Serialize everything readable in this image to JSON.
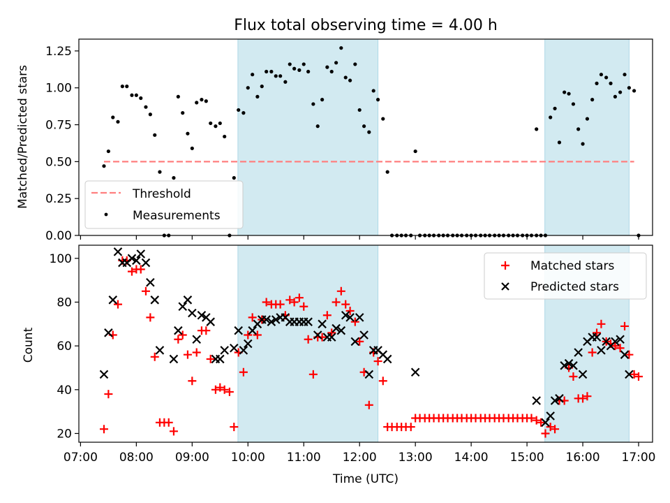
{
  "chart_data": {
    "type": "scatter",
    "title": "Flux total observing time = 4.00 h",
    "xlabel": "Time (UTC)",
    "x_ticks": [
      "07:00",
      "08:00",
      "09:00",
      "10:00",
      "11:00",
      "12:00",
      "13:00",
      "14:00",
      "15:00",
      "16:00",
      "17:00"
    ],
    "x_range_hours": [
      6.97,
      17.25
    ],
    "shaded_intervals_hours": [
      [
        9.82,
        12.33
      ],
      [
        15.32,
        16.83
      ]
    ],
    "colors": {
      "measure": "#000000",
      "threshold": "#ff7f7f",
      "matched": "#ff0000",
      "predicted": "#000000",
      "shade": "#add8e6"
    },
    "top_panel": {
      "ylabel": "Matched/Predicted stars",
      "ylim": [
        0,
        1.33
      ],
      "y_ticks": [
        "0.00",
        "0.25",
        "0.50",
        "0.75",
        "1.00",
        "1.25"
      ],
      "threshold": {
        "value": 0.5,
        "x_range": [
          7.42,
          16.92
        ],
        "label": "Threshold"
      },
      "measurements_label": "Measurements",
      "measurements": [
        [
          7.42,
          0.47
        ],
        [
          7.5,
          0.57
        ],
        [
          7.58,
          0.8
        ],
        [
          7.67,
          0.77
        ],
        [
          7.75,
          1.01
        ],
        [
          7.83,
          1.01
        ],
        [
          7.92,
          0.95
        ],
        [
          8.0,
          0.95
        ],
        [
          8.08,
          0.93
        ],
        [
          8.17,
          0.87
        ],
        [
          8.25,
          0.82
        ],
        [
          8.33,
          0.68
        ],
        [
          8.42,
          0.43
        ],
        [
          8.5,
          0.0
        ],
        [
          8.58,
          0.0
        ],
        [
          8.67,
          0.39
        ],
        [
          8.75,
          0.94
        ],
        [
          8.83,
          0.83
        ],
        [
          8.92,
          0.69
        ],
        [
          9.0,
          0.59
        ],
        [
          9.08,
          0.9
        ],
        [
          9.17,
          0.92
        ],
        [
          9.25,
          0.91
        ],
        [
          9.33,
          0.76
        ],
        [
          9.42,
          0.74
        ],
        [
          9.5,
          0.76
        ],
        [
          9.58,
          0.67
        ],
        [
          9.67,
          0.0
        ],
        [
          9.75,
          0.39
        ],
        [
          9.83,
          0.85
        ],
        [
          9.92,
          0.83
        ],
        [
          10.0,
          1.0
        ],
        [
          10.08,
          1.09
        ],
        [
          10.17,
          0.94
        ],
        [
          10.25,
          1.01
        ],
        [
          10.33,
          1.11
        ],
        [
          10.42,
          1.11
        ],
        [
          10.5,
          1.08
        ],
        [
          10.58,
          1.08
        ],
        [
          10.67,
          1.04
        ],
        [
          10.75,
          1.16
        ],
        [
          10.83,
          1.13
        ],
        [
          10.92,
          1.12
        ],
        [
          11.0,
          1.16
        ],
        [
          11.08,
          1.11
        ],
        [
          11.17,
          0.89
        ],
        [
          11.25,
          0.74
        ],
        [
          11.33,
          0.92
        ],
        [
          11.42,
          1.14
        ],
        [
          11.5,
          1.11
        ],
        [
          11.58,
          1.17
        ],
        [
          11.67,
          1.27
        ],
        [
          11.75,
          1.07
        ],
        [
          11.83,
          1.05
        ],
        [
          11.92,
          1.16
        ],
        [
          12.0,
          0.85
        ],
        [
          12.08,
          0.74
        ],
        [
          12.17,
          0.7
        ],
        [
          12.25,
          0.98
        ],
        [
          12.33,
          0.92
        ],
        [
          12.42,
          0.79
        ],
        [
          12.5,
          0.43
        ],
        [
          12.58,
          0.0
        ],
        [
          12.67,
          0.0
        ],
        [
          12.75,
          0.0
        ],
        [
          12.83,
          0.0
        ],
        [
          12.92,
          0.0
        ],
        [
          13.0,
          0.57
        ],
        [
          13.08,
          0.0
        ],
        [
          13.17,
          0.0
        ],
        [
          13.25,
          0.0
        ],
        [
          13.33,
          0.0
        ],
        [
          13.42,
          0.0
        ],
        [
          13.5,
          0.0
        ],
        [
          13.58,
          0.0
        ],
        [
          13.67,
          0.0
        ],
        [
          13.75,
          0.0
        ],
        [
          13.83,
          0.0
        ],
        [
          13.92,
          0.0
        ],
        [
          14.0,
          0.0
        ],
        [
          14.08,
          0.0
        ],
        [
          14.17,
          0.0
        ],
        [
          14.25,
          0.0
        ],
        [
          14.33,
          0.0
        ],
        [
          14.42,
          0.0
        ],
        [
          14.5,
          0.0
        ],
        [
          14.58,
          0.0
        ],
        [
          14.67,
          0.0
        ],
        [
          14.75,
          0.0
        ],
        [
          14.83,
          0.0
        ],
        [
          14.92,
          0.0
        ],
        [
          15.0,
          0.0
        ],
        [
          15.08,
          0.0
        ],
        [
          15.17,
          0.0
        ],
        [
          15.25,
          0.0
        ],
        [
          15.33,
          0.0
        ],
        [
          15.17,
          0.72
        ],
        [
          15.42,
          0.8
        ],
        [
          15.5,
          0.86
        ],
        [
          15.58,
          0.63
        ],
        [
          15.67,
          0.97
        ],
        [
          15.75,
          0.96
        ],
        [
          15.83,
          0.89
        ],
        [
          15.92,
          0.72
        ],
        [
          16.0,
          0.62
        ],
        [
          16.08,
          0.79
        ],
        [
          16.17,
          0.92
        ],
        [
          16.25,
          1.03
        ],
        [
          16.33,
          1.09
        ],
        [
          16.42,
          1.07
        ],
        [
          16.5,
          1.03
        ],
        [
          16.58,
          0.94
        ],
        [
          16.67,
          0.97
        ],
        [
          16.75,
          1.09
        ],
        [
          16.83,
          1.0
        ],
        [
          16.92,
          0.98
        ],
        [
          17.0,
          0.0
        ]
      ]
    },
    "bottom_panel": {
      "ylabel": "Count",
      "ylim": [
        16,
        106
      ],
      "y_ticks": [
        "20",
        "40",
        "60",
        "80",
        "100"
      ],
      "matched_label": "Matched stars",
      "predicted_label": "Predicted stars",
      "matched": [
        [
          7.42,
          22
        ],
        [
          7.5,
          38
        ],
        [
          7.58,
          65
        ],
        [
          7.67,
          79
        ],
        [
          7.75,
          99
        ],
        [
          7.83,
          99
        ],
        [
          7.92,
          94
        ],
        [
          8.0,
          95
        ],
        [
          8.08,
          95
        ],
        [
          8.17,
          85
        ],
        [
          8.25,
          73
        ],
        [
          8.33,
          55
        ],
        [
          8.42,
          25
        ],
        [
          8.5,
          25
        ],
        [
          8.58,
          25
        ],
        [
          8.67,
          21
        ],
        [
          8.75,
          63
        ],
        [
          8.83,
          65
        ],
        [
          8.92,
          56
        ],
        [
          9.0,
          44
        ],
        [
          9.08,
          57
        ],
        [
          9.17,
          67
        ],
        [
          9.25,
          67
        ],
        [
          9.33,
          54
        ],
        [
          9.42,
          40
        ],
        [
          9.5,
          41
        ],
        [
          9.58,
          40
        ],
        [
          9.67,
          39
        ],
        [
          9.75,
          23
        ],
        [
          9.83,
          57
        ],
        [
          9.92,
          48
        ],
        [
          10.0,
          65
        ],
        [
          10.08,
          73
        ],
        [
          10.17,
          65
        ],
        [
          10.25,
          72
        ],
        [
          10.33,
          80
        ],
        [
          10.42,
          79
        ],
        [
          10.5,
          79
        ],
        [
          10.58,
          79
        ],
        [
          10.67,
          74
        ],
        [
          10.75,
          81
        ],
        [
          10.83,
          80
        ],
        [
          10.92,
          82
        ],
        [
          11.0,
          78
        ],
        [
          11.08,
          63
        ],
        [
          11.17,
          47
        ],
        [
          11.25,
          64
        ],
        [
          11.33,
          64
        ],
        [
          11.42,
          74
        ],
        [
          11.5,
          66
        ],
        [
          11.58,
          80
        ],
        [
          11.67,
          85
        ],
        [
          11.75,
          79
        ],
        [
          11.83,
          76
        ],
        [
          11.92,
          71
        ],
        [
          12.0,
          62
        ],
        [
          12.08,
          48
        ],
        [
          12.17,
          33
        ],
        [
          12.25,
          57
        ],
        [
          12.33,
          53
        ],
        [
          12.42,
          44
        ],
        [
          12.5,
          23
        ],
        [
          12.58,
          23
        ],
        [
          12.67,
          23
        ],
        [
          12.75,
          23
        ],
        [
          12.83,
          23
        ],
        [
          12.92,
          23
        ],
        [
          13.0,
          27
        ],
        [
          13.08,
          27
        ],
        [
          13.17,
          27
        ],
        [
          13.25,
          27
        ],
        [
          13.33,
          27
        ],
        [
          13.42,
          27
        ],
        [
          13.5,
          27
        ],
        [
          13.58,
          27
        ],
        [
          13.67,
          27
        ],
        [
          13.75,
          27
        ],
        [
          13.83,
          27
        ],
        [
          13.92,
          27
        ],
        [
          14.0,
          27
        ],
        [
          14.08,
          27
        ],
        [
          14.17,
          27
        ],
        [
          14.25,
          27
        ],
        [
          14.33,
          27
        ],
        [
          14.42,
          27
        ],
        [
          14.5,
          27
        ],
        [
          14.58,
          27
        ],
        [
          14.67,
          27
        ],
        [
          14.75,
          27
        ],
        [
          14.83,
          27
        ],
        [
          14.92,
          27
        ],
        [
          15.0,
          27
        ],
        [
          15.08,
          27
        ],
        [
          15.17,
          26
        ],
        [
          15.25,
          25
        ],
        [
          15.33,
          20
        ],
        [
          15.42,
          23
        ],
        [
          15.5,
          22
        ],
        [
          15.58,
          35
        ],
        [
          15.67,
          35
        ],
        [
          15.75,
          50
        ],
        [
          15.83,
          46
        ],
        [
          15.92,
          36
        ],
        [
          16.0,
          36
        ],
        [
          16.08,
          37
        ],
        [
          16.17,
          57
        ],
        [
          16.25,
          66
        ],
        [
          16.33,
          70
        ],
        [
          16.42,
          62
        ],
        [
          16.5,
          61
        ],
        [
          16.58,
          60
        ],
        [
          16.67,
          59
        ],
        [
          16.75,
          69
        ],
        [
          16.83,
          56
        ],
        [
          16.92,
          47
        ],
        [
          17.0,
          46
        ]
      ],
      "predicted": [
        [
          7.42,
          47
        ],
        [
          7.5,
          66
        ],
        [
          7.58,
          81
        ],
        [
          7.67,
          103
        ],
        [
          7.75,
          98
        ],
        [
          7.83,
          98
        ],
        [
          7.92,
          100
        ],
        [
          8.0,
          99
        ],
        [
          8.08,
          102
        ],
        [
          8.17,
          98
        ],
        [
          8.25,
          89
        ],
        [
          8.33,
          81
        ],
        [
          8.42,
          58
        ],
        [
          8.67,
          54
        ],
        [
          8.75,
          67
        ],
        [
          8.83,
          78
        ],
        [
          8.92,
          81
        ],
        [
          9.0,
          75
        ],
        [
          9.08,
          63
        ],
        [
          9.17,
          74
        ],
        [
          9.25,
          73
        ],
        [
          9.33,
          71
        ],
        [
          9.42,
          54
        ],
        [
          9.5,
          54
        ],
        [
          9.58,
          58
        ],
        [
          9.75,
          59
        ],
        [
          9.83,
          67
        ],
        [
          9.92,
          58
        ],
        [
          10.0,
          61
        ],
        [
          10.08,
          67
        ],
        [
          10.17,
          70
        ],
        [
          10.25,
          72
        ],
        [
          10.33,
          72
        ],
        [
          10.42,
          71
        ],
        [
          10.5,
          72
        ],
        [
          10.58,
          73
        ],
        [
          10.67,
          73
        ],
        [
          10.75,
          71
        ],
        [
          10.83,
          71
        ],
        [
          10.92,
          71
        ],
        [
          11.0,
          71
        ],
        [
          11.08,
          71
        ],
        [
          11.25,
          65
        ],
        [
          11.33,
          70
        ],
        [
          11.42,
          64
        ],
        [
          11.5,
          64
        ],
        [
          11.58,
          68
        ],
        [
          11.67,
          67
        ],
        [
          11.75,
          74
        ],
        [
          11.83,
          73
        ],
        [
          11.92,
          62
        ],
        [
          12.0,
          73
        ],
        [
          12.08,
          65
        ],
        [
          12.17,
          47
        ],
        [
          12.25,
          58
        ],
        [
          12.33,
          58
        ],
        [
          12.42,
          56
        ],
        [
          12.5,
          54
        ],
        [
          13.0,
          48
        ],
        [
          15.17,
          35
        ],
        [
          15.33,
          25
        ],
        [
          15.42,
          28
        ],
        [
          15.5,
          35
        ],
        [
          15.58,
          36
        ],
        [
          15.67,
          51
        ],
        [
          15.75,
          52
        ],
        [
          15.83,
          51
        ],
        [
          15.92,
          57
        ],
        [
          16.0,
          47
        ],
        [
          16.08,
          62
        ],
        [
          16.17,
          64
        ],
        [
          16.25,
          64
        ],
        [
          16.33,
          58
        ],
        [
          16.42,
          62
        ],
        [
          16.5,
          60
        ],
        [
          16.58,
          62
        ],
        [
          16.67,
          63
        ],
        [
          16.75,
          56
        ],
        [
          16.83,
          47
        ]
      ]
    }
  }
}
